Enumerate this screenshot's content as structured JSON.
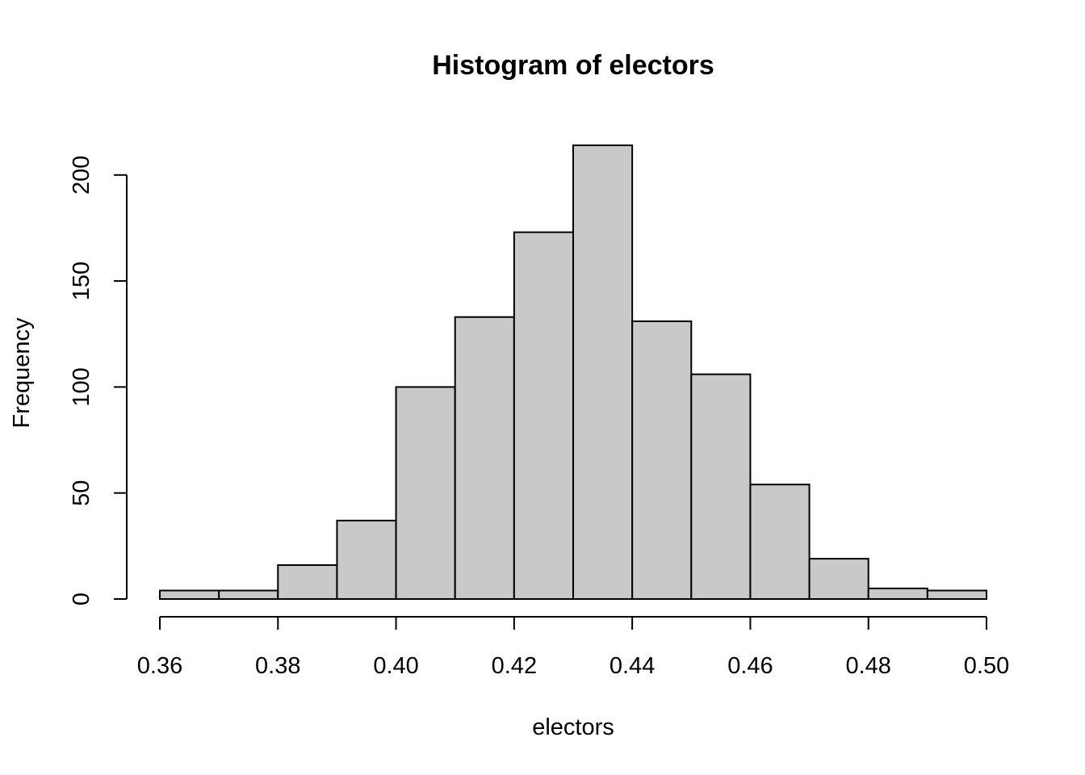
{
  "chart_data": {
    "type": "bar",
    "title": "Histogram of electors",
    "xlabel": "electors",
    "ylabel": "Frequency",
    "bar_color": "#c9c9c9",
    "edge_color": "#000000",
    "bin_edges": [
      0.36,
      0.37,
      0.38,
      0.39,
      0.4,
      0.41,
      0.42,
      0.43,
      0.44,
      0.45,
      0.46,
      0.47,
      0.48,
      0.49,
      0.5
    ],
    "values": [
      4,
      4,
      16,
      37,
      100,
      133,
      173,
      214,
      131,
      106,
      54,
      19,
      5,
      4
    ],
    "xlim": [
      0.36,
      0.5
    ],
    "ylim": [
      0,
      214
    ],
    "x_ticks": [
      0.36,
      0.38,
      0.4,
      0.42,
      0.44,
      0.46,
      0.48,
      0.5
    ],
    "x_tick_labels": [
      "0.36",
      "0.38",
      "0.40",
      "0.42",
      "0.44",
      "0.46",
      "0.48",
      "0.50"
    ],
    "y_ticks": [
      0,
      50,
      100,
      150,
      200
    ],
    "y_tick_labels": [
      "0",
      "50",
      "100",
      "150",
      "200"
    ],
    "grid": false,
    "legend": "none"
  }
}
